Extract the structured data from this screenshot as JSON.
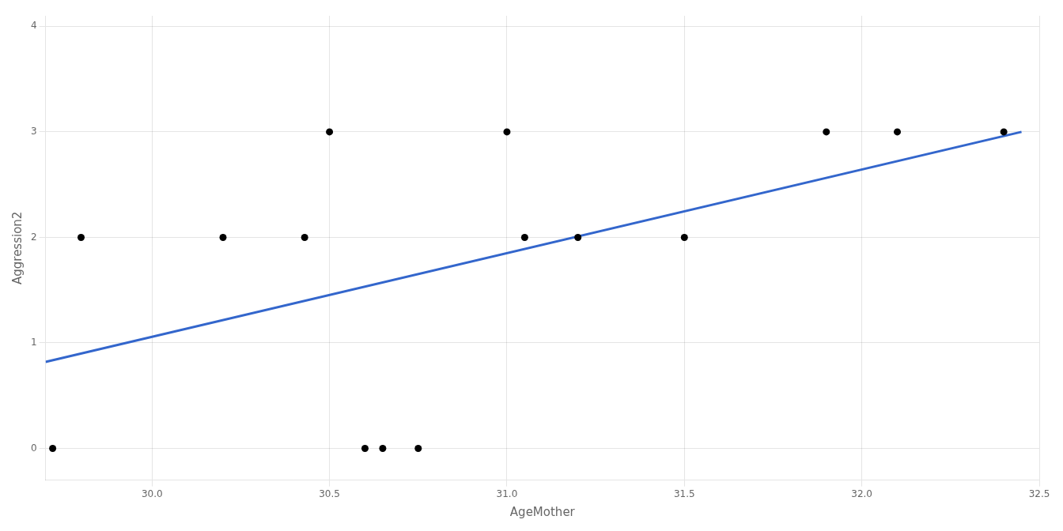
{
  "chart_data": {
    "type": "scatter",
    "xlabel": "AgeMother",
    "ylabel": "Aggression2",
    "series": [
      {
        "type": "line",
        "color": "#3366CC",
        "x": [
          29.7,
          32.45
        ],
        "values": [
          0.82,
          3.0
        ]
      },
      {
        "type": "scatter",
        "color": "#000000",
        "x": [
          29.72,
          29.8,
          30.2,
          30.43,
          30.5,
          30.6,
          30.65,
          30.75,
          31.0,
          31.05,
          31.2,
          31.5,
          31.9,
          32.1,
          32.4
        ],
        "values": [
          0,
          2,
          2,
          2,
          3,
          0,
          0,
          0,
          3,
          2,
          2,
          2,
          3,
          3,
          3
        ]
      }
    ],
    "xlim": [
      29.7,
      32.5
    ],
    "ylim": [
      -0.3,
      4.1
    ],
    "xticks": [
      {
        "value": 30,
        "label": "30.0"
      },
      30.5,
      {
        "value": 31,
        "label": "31.0"
      },
      31.5,
      {
        "value": 32,
        "label": "32.0"
      },
      32.5
    ],
    "yticks": [
      0,
      1,
      2,
      3,
      4
    ],
    "grid": true
  }
}
